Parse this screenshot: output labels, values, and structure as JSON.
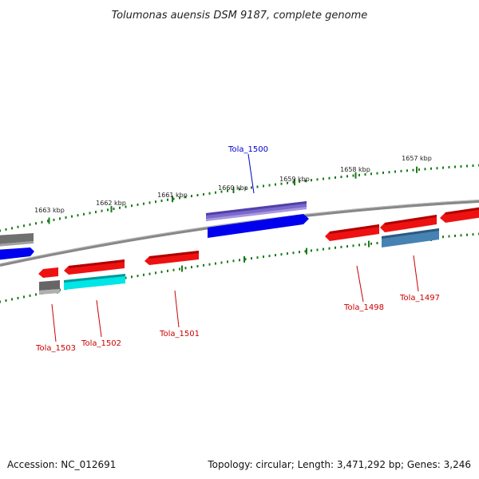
{
  "title": "Tolumonas auensis DSM 9187, complete genome",
  "footer": {
    "accession": "Accession: NC_012691",
    "topology": "Topology: circular; Length: 3,471,292 bp; Genes: 3,246"
  },
  "colors": {
    "backbone": "#7a7a7a",
    "tick": "#1a7a1a",
    "label_red": "#cc0000",
    "label_blue": "#0000cc"
  },
  "kbp_labels": [
    "1663 kbp",
    "1662 kbp",
    "1661 kbp",
    "1660 kbp",
    "1659 kbp",
    "1658 kbp",
    "1657 kbp"
  ],
  "gene_labels": [
    {
      "text": "Tola_1500",
      "color": "#0000cc"
    },
    {
      "text": "Tola_1498",
      "color": "#cc0000"
    },
    {
      "text": "Tola_1497",
      "color": "#cc0000"
    },
    {
      "text": "Tola_1503",
      "color": "#cc0000"
    },
    {
      "text": "Tola_1502",
      "color": "#cc0000"
    },
    {
      "text": "Tola_1501",
      "color": "#cc0000"
    }
  ],
  "features": [
    {
      "name": "left-edge-gray",
      "color": "#707070",
      "type": "gray"
    },
    {
      "name": "left-edge-blue",
      "color": "#0000ee",
      "type": "blue"
    },
    {
      "name": "tola-1500-purple",
      "color": "#7b68cc",
      "type": "purple"
    },
    {
      "name": "tola-1500-blue",
      "color": "#0000ee",
      "type": "blue"
    },
    {
      "name": "tola-1503-red",
      "color": "#ee1111",
      "type": "red"
    },
    {
      "name": "tola-1503-gray",
      "color": "#707070",
      "type": "gray"
    },
    {
      "name": "tola-1502-red",
      "color": "#ee1111",
      "type": "red"
    },
    {
      "name": "tola-1502-cyan",
      "color": "#00e5e5",
      "type": "cyan"
    },
    {
      "name": "tola-1501-red",
      "color": "#ee1111",
      "type": "red"
    },
    {
      "name": "tola-1498-red",
      "color": "#ee1111",
      "type": "red"
    },
    {
      "name": "tola-1497-red",
      "color": "#ee1111",
      "type": "red"
    },
    {
      "name": "tola-1497-steel",
      "color": "#4682b4",
      "type": "steel"
    },
    {
      "name": "right-edge-red",
      "color": "#ee1111",
      "type": "red"
    }
  ]
}
